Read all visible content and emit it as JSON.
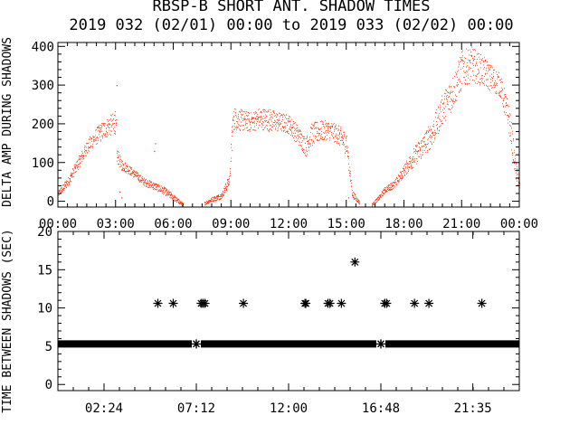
{
  "title_line1": "RBSP-B SHORT ANT. SHADOW TIMES",
  "title_line2": "2019 032 (02/01) 00:00 to 2019 033 (02/02) 00:00",
  "colors": {
    "trace": "#ff2a00",
    "axis": "#000000",
    "background": "#ffffff"
  },
  "chart_data": [
    {
      "type": "scatter",
      "ylabel": "DELTA AMP DURING SHADOWS",
      "xlabel": "",
      "xlim": [
        0,
        24
      ],
      "ylim": [
        -15,
        410
      ],
      "x_tick_labels": [
        "00:00",
        "03:00",
        "06:00",
        "09:00",
        "12:00",
        "15:00",
        "18:00",
        "21:00",
        "00:00"
      ],
      "x_ticks_hours": [
        0,
        3,
        6,
        9,
        12,
        15,
        18,
        21,
        24
      ],
      "y_ticks": [
        0,
        100,
        200,
        300,
        400
      ],
      "color": "#ff2a00",
      "envelope_hours": [
        0.0,
        0.5,
        1.0,
        1.5,
        2.0,
        2.5,
        3.0,
        3.05,
        3.3,
        3.6,
        4.0,
        4.5,
        5.0,
        5.2,
        5.5,
        6.0,
        6.5,
        7.0,
        7.3,
        7.6,
        8.0,
        8.5,
        8.9,
        9.05,
        9.1,
        9.5,
        10.0,
        10.5,
        11.0,
        11.5,
        12.0,
        12.5,
        12.9,
        13.1,
        13.5,
        14.0,
        14.5,
        15.0,
        15.3,
        15.7,
        16.0,
        16.3,
        16.7,
        17.0,
        17.5,
        18.0,
        18.5,
        19.0,
        19.5,
        20.0,
        20.5,
        21.0,
        21.5,
        22.0,
        22.5,
        23.0,
        23.5,
        23.8,
        24.0
      ],
      "envelope_mean": [
        20,
        50,
        95,
        140,
        170,
        190,
        205,
        120,
        95,
        85,
        70,
        50,
        40,
        35,
        28,
        10,
        -8,
        null,
        null,
        -5,
        5,
        15,
        55,
        170,
        215,
        210,
        205,
        215,
        210,
        205,
        200,
        170,
        140,
        170,
        180,
        185,
        175,
        150,
        20,
        -5,
        null,
        -10,
        10,
        30,
        45,
        80,
        115,
        145,
        180,
        240,
        280,
        340,
        355,
        340,
        320,
        300,
        200,
        80,
        40
      ],
      "envelope_spread": [
        8,
        12,
        15,
        18,
        22,
        25,
        30,
        20,
        15,
        12,
        10,
        10,
        10,
        10,
        10,
        8,
        4,
        null,
        null,
        4,
        6,
        8,
        15,
        40,
        30,
        28,
        25,
        28,
        30,
        25,
        25,
        25,
        25,
        30,
        28,
        25,
        25,
        30,
        10,
        4,
        null,
        4,
        6,
        8,
        10,
        15,
        25,
        30,
        35,
        40,
        45,
        50,
        45,
        40,
        35,
        30,
        40,
        25,
        15
      ],
      "events": [
        {
          "hour": 3.05,
          "value": 300
        },
        {
          "hour": 3.2,
          "value": 25
        },
        {
          "hour": 3.3,
          "value": 10
        },
        {
          "hour": 5.0,
          "value": 130
        },
        {
          "hour": 5.05,
          "value": 150
        },
        {
          "hour": 15.1,
          "value": 10
        }
      ]
    },
    {
      "type": "scatter",
      "ylabel": "TIME BETWEEN SHADOWS (SEC)",
      "xlabel": "",
      "xlim": [
        0,
        24
      ],
      "ylim": [
        -0.8,
        20
      ],
      "x_tick_labels": [
        "02:24",
        "07:12",
        "12:00",
        "16:48",
        "21:35"
      ],
      "x_ticks_hours": [
        2.4,
        7.2,
        12.0,
        16.8,
        21.5833
      ],
      "y_ticks": [
        0,
        5,
        10,
        15,
        20
      ],
      "marker": "*",
      "color": "#000000",
      "band": {
        "value": 5.3,
        "from_hour": 0.0,
        "to_hour": 24.0
      },
      "points": [
        {
          "x": 7.2,
          "y": 5.3
        },
        {
          "x": 16.8,
          "y": 5.3
        },
        {
          "x": 5.2,
          "y": 10.6
        },
        {
          "x": 6.0,
          "y": 10.6
        },
        {
          "x": 7.45,
          "y": 10.6
        },
        {
          "x": 7.55,
          "y": 10.6
        },
        {
          "x": 7.65,
          "y": 10.6
        },
        {
          "x": 9.65,
          "y": 10.6
        },
        {
          "x": 12.85,
          "y": 10.6
        },
        {
          "x": 12.9,
          "y": 10.6
        },
        {
          "x": 14.05,
          "y": 10.6
        },
        {
          "x": 14.15,
          "y": 10.6
        },
        {
          "x": 14.75,
          "y": 10.6
        },
        {
          "x": 15.45,
          "y": 16.0
        },
        {
          "x": 17.0,
          "y": 10.6
        },
        {
          "x": 17.1,
          "y": 10.6
        },
        {
          "x": 18.55,
          "y": 10.6
        },
        {
          "x": 19.3,
          "y": 10.6
        },
        {
          "x": 22.05,
          "y": 10.6
        }
      ]
    }
  ]
}
